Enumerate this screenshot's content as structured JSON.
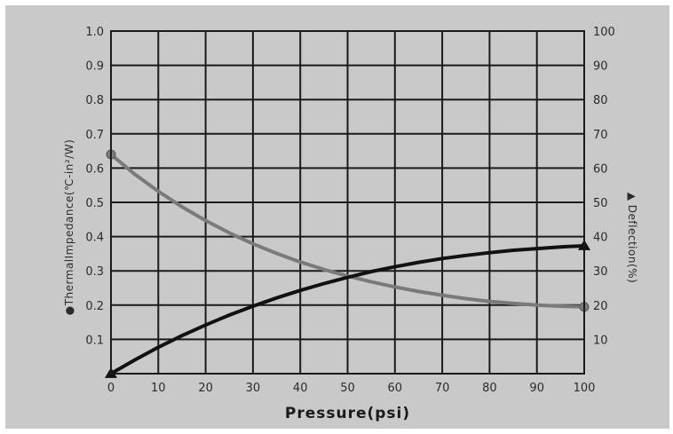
{
  "chart_data": {
    "type": "line",
    "xlabel": "Pressure(psi)",
    "ylabel_left": "●ThermalImpedance(℃-in²/W)",
    "ylabel_right": "▲ Deflection(%)",
    "xlim": [
      0,
      100
    ],
    "ylim_left": [
      0,
      1.0
    ],
    "ylim_right": [
      0,
      100
    ],
    "x_ticks": [
      "0",
      "10",
      "20",
      "30",
      "40",
      "50",
      "60",
      "70",
      "80",
      "90",
      "100"
    ],
    "y_left_ticks": [
      "",
      "0.1",
      "0.2",
      "0.3",
      "0.4",
      "0.5",
      "0.6",
      "0.7",
      "0.8",
      "0.9",
      "1.0"
    ],
    "y_right_ticks": [
      "",
      "10",
      "20",
      "30",
      "40",
      "50",
      "60",
      "70",
      "80",
      "90",
      "100"
    ],
    "grid": true,
    "series": [
      {
        "name": "Thermal Impedance",
        "axis": "left",
        "color": "#7a7a7a",
        "marker": "circle",
        "x": [
          0,
          5,
          10,
          15,
          20,
          25,
          30,
          35,
          40,
          45,
          50,
          55,
          60,
          65,
          70,
          75,
          80,
          85,
          90,
          95,
          100
        ],
        "y": [
          0.64,
          0.582,
          0.532,
          0.487,
          0.447,
          0.411,
          0.379,
          0.351,
          0.326,
          0.304,
          0.285,
          0.268,
          0.253,
          0.24,
          0.229,
          0.219,
          0.211,
          0.205,
          0.2,
          0.197,
          0.195
        ]
      },
      {
        "name": "Deflection",
        "axis": "right",
        "color": "#111111",
        "marker": "triangle",
        "x": [
          0,
          5,
          10,
          15,
          20,
          25,
          30,
          35,
          40,
          45,
          50,
          55,
          60,
          65,
          70,
          75,
          80,
          85,
          90,
          95,
          100
        ],
        "y": [
          0,
          4.0,
          7.7,
          11.1,
          14.2,
          17.1,
          19.7,
          22.1,
          24.3,
          26.3,
          28.1,
          29.8,
          31.2,
          32.5,
          33.6,
          34.5,
          35.3,
          36.0,
          36.5,
          37.0,
          37.3
        ]
      }
    ]
  }
}
